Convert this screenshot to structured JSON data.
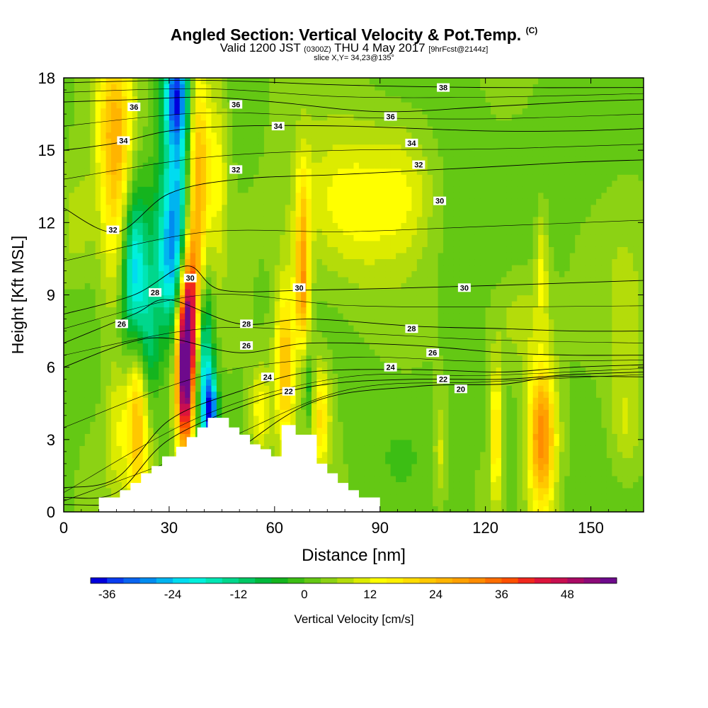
{
  "header": {
    "title": "Angled Section: Vertical Velocity & Pot.Temp.",
    "copyright": "(C)",
    "valid_prefix": "Valid 1200 JST",
    "valid_utc": "(0300Z)",
    "valid_day": "THU 4 May 2017",
    "forecast": "[9hrFcst@2144z]",
    "slice": "slice X,Y= 34,23@135°"
  },
  "chart_data": {
    "type": "heatmap",
    "title": "Angled Section: Vertical Velocity & Pot.Temp.",
    "xlabel": "Distance [nm]",
    "ylabel": "Height [Kft MSL]",
    "xlim": [
      0,
      165
    ],
    "ylim": [
      0,
      18
    ],
    "x_ticks": [
      0,
      30,
      60,
      90,
      120,
      150
    ],
    "y_ticks": [
      0,
      3,
      6,
      9,
      12,
      15,
      18
    ],
    "colorbar": {
      "label": "Vertical Velocity [cm/s]",
      "tick_labels": [
        "-36",
        "-24",
        "-12",
        "0",
        "12",
        "24",
        "36",
        "48"
      ],
      "tick_values": [
        -36,
        -24,
        -12,
        0,
        12,
        24,
        36,
        48
      ],
      "bins": [
        -39,
        -36,
        -33,
        -30,
        -27,
        -24,
        -21,
        -18,
        -15,
        -12,
        -9,
        -6,
        -3,
        0,
        3,
        6,
        9,
        12,
        15,
        18,
        21,
        24,
        27,
        30,
        33,
        36,
        39,
        42,
        45,
        48,
        51,
        54
      ],
      "colors": [
        "#0000dc",
        "#0a3cf0",
        "#0a64f0",
        "#008cf0",
        "#00b4f0",
        "#00dcf0",
        "#00f0dc",
        "#00e6b4",
        "#00d78c",
        "#00c864",
        "#00b93c",
        "#14b41e",
        "#3cbe14",
        "#64c814",
        "#8cd214",
        "#b4dc0a",
        "#dceb00",
        "#ffff00",
        "#fff000",
        "#ffdc00",
        "#ffc800",
        "#ffb400",
        "#ffa000",
        "#ff8c00",
        "#ff6e00",
        "#ff5000",
        "#f0281e",
        "#dc143c",
        "#c80f50",
        "#aa0a64",
        "#8c0a78",
        "#6e0a8c"
      ]
    },
    "velocity_features": [
      {
        "label": "updraft",
        "x": 15,
        "y": 13.5,
        "sx": 3.5,
        "sy": 3.5,
        "w": 18
      },
      {
        "label": "updraft",
        "x": 14,
        "y": 16.5,
        "sx": 4,
        "sy": 2,
        "w": 10
      },
      {
        "label": "downdraft",
        "x": 20,
        "y": 9.8,
        "sx": 2.5,
        "sy": 2.6,
        "w": -28
      },
      {
        "label": "downdraft",
        "x": 24,
        "y": 7.0,
        "sx": 2,
        "sy": 2,
        "w": -14
      },
      {
        "label": "updraft",
        "x": 21,
        "y": 4.2,
        "sx": 2.3,
        "sy": 2.8,
        "w": 24
      },
      {
        "label": "updraft",
        "x": 15,
        "y": 3.5,
        "sx": 2,
        "sy": 2,
        "w": 8
      },
      {
        "label": "downdraft",
        "x": 33,
        "y": 11.5,
        "sx": 5,
        "sy": 2.5,
        "w": -18
      },
      {
        "label": "downdraft",
        "x": 30,
        "y": 10.0,
        "sx": 3,
        "sy": 2,
        "w": -12
      },
      {
        "label": "downdraft",
        "x": 33,
        "y": 15.0,
        "sx": 3,
        "sy": 4,
        "w": -16
      },
      {
        "label": "downdraft",
        "x": 32,
        "y": 17.3,
        "sx": 2.5,
        "sy": 1.5,
        "w": -26
      },
      {
        "label": "updraft",
        "x": 38,
        "y": 13.2,
        "sx": 2.5,
        "sy": 3.8,
        "w": 32
      },
      {
        "label": "updraft",
        "x": 36,
        "y": 8.8,
        "sx": 2,
        "sy": 2.5,
        "w": 26
      },
      {
        "label": "updraft",
        "x": 34.5,
        "y": 6.0,
        "sx": 1.8,
        "sy": 2.6,
        "w": 54
      },
      {
        "label": "downdraft",
        "x": 40,
        "y": 6.0,
        "sx": 1.8,
        "sy": 2.8,
        "w": -26
      },
      {
        "label": "downdraft",
        "x": 42,
        "y": 4.2,
        "sx": 1.3,
        "sy": 1,
        "w": -30
      },
      {
        "label": "updraft",
        "x": 44,
        "y": 14.0,
        "sx": 2,
        "sy": 3,
        "w": 10
      },
      {
        "label": "updraft",
        "x": 63,
        "y": 6.2,
        "sx": 2,
        "sy": 2.5,
        "w": 22
      },
      {
        "label": "updraft",
        "x": 56,
        "y": 4.2,
        "sx": 2,
        "sy": 1.3,
        "w": 12
      },
      {
        "label": "updraft",
        "x": 68,
        "y": 11.0,
        "sx": 1.5,
        "sy": 2.5,
        "w": 18
      },
      {
        "label": "updraft",
        "x": 68,
        "y": 8.8,
        "sx": 1.5,
        "sy": 1.5,
        "w": 14
      },
      {
        "label": "updraft",
        "x": 73,
        "y": 4.0,
        "sx": 2,
        "sy": 1.5,
        "w": 16
      },
      {
        "label": "downdraft",
        "x": 70,
        "y": 5.0,
        "sx": 1,
        "sy": 1.2,
        "w": -10
      },
      {
        "label": "updraft",
        "x": 82,
        "y": 12.8,
        "sx": 11,
        "sy": 2.2,
        "w": 12
      },
      {
        "label": "updraft",
        "x": 98,
        "y": 13.5,
        "sx": 6,
        "sy": 2,
        "w": 6
      },
      {
        "label": "updraft",
        "x": 136,
        "y": 3.1,
        "sx": 2.8,
        "sy": 2.2,
        "w": 30
      },
      {
        "label": "updraft",
        "x": 123,
        "y": 3.2,
        "sx": 1.2,
        "sy": 2,
        "w": 18
      },
      {
        "label": "updraft",
        "x": 107,
        "y": 2.5,
        "sx": 1.2,
        "sy": 1.5,
        "w": 8
      },
      {
        "label": "updraft",
        "x": 136,
        "y": 10.2,
        "sx": 1.2,
        "sy": 1.5,
        "w": 10
      },
      {
        "label": "updraft",
        "x": 130,
        "y": 8.0,
        "sx": 6,
        "sy": 1.5,
        "w": 6
      },
      {
        "label": "downdraft",
        "x": 110,
        "y": 12.5,
        "sx": 8,
        "sy": 3,
        "w": -2
      },
      {
        "label": "downdraft",
        "x": 140,
        "y": 15.5,
        "sx": 10,
        "sy": 2,
        "w": -1
      },
      {
        "label": "downdraft",
        "x": 95,
        "y": 2.5,
        "sx": 6,
        "sy": 1.2,
        "w": -2
      },
      {
        "label": "downdraft",
        "x": 128,
        "y": 2.0,
        "sx": 4,
        "sy": 1.5,
        "w": -3
      },
      {
        "label": "updraft",
        "x": 160,
        "y": 8.0,
        "sx": 4,
        "sy": 3,
        "w": 4
      },
      {
        "label": "updraft",
        "x": 160,
        "y": 3.5,
        "sx": 3,
        "sy": 1.5,
        "w": 6
      },
      {
        "label": "updraft",
        "x": 4,
        "y": 12.0,
        "sx": 3,
        "sy": 1.5,
        "w": 6
      }
    ],
    "terrain": {
      "x": [
        0,
        10,
        10,
        16,
        16,
        19,
        19,
        22,
        22,
        25,
        25,
        28,
        28,
        32,
        32,
        35,
        35,
        38,
        38,
        41,
        41,
        47,
        47,
        50,
        50,
        53,
        53,
        56,
        56,
        59,
        59,
        62,
        62,
        66,
        66,
        72,
        72,
        75,
        75,
        78,
        78,
        81,
        81,
        84,
        84,
        90,
        90,
        165
      ],
      "y": [
        0,
        0,
        0.6,
        0.6,
        0.9,
        0.9,
        1.2,
        1.2,
        1.6,
        1.6,
        1.9,
        1.9,
        2.3,
        2.3,
        2.7,
        2.7,
        3.1,
        3.1,
        3.5,
        3.5,
        3.9,
        3.9,
        3.5,
        3.5,
        3.2,
        3.2,
        2.8,
        2.8,
        2.6,
        2.6,
        2.3,
        2.3,
        3.6,
        3.6,
        3.2,
        3.2,
        2.0,
        2.0,
        1.6,
        1.6,
        1.2,
        1.2,
        0.9,
        0.9,
        0.6,
        0.6,
        0,
        0
      ]
    },
    "theta_contours": [
      {
        "value": 20,
        "x": [
          0,
          20,
          40,
          70,
          100,
          125,
          140,
          165
        ],
        "y": [
          0.3,
          0.4,
          1.6,
          4.5,
          5.2,
          5.3,
          5.6,
          5.6
        ]
      },
      {
        "value": 22,
        "x": [
          0,
          15,
          30,
          55,
          75,
          100,
          125,
          145,
          165
        ],
        "y": [
          0.6,
          0.8,
          3.0,
          4.6,
          5.3,
          5.5,
          5.5,
          5.7,
          5.8
        ]
      },
      {
        "value": 24,
        "x": [
          0,
          15,
          30,
          50,
          70,
          100,
          125,
          145,
          165
        ],
        "y": [
          1.0,
          1.4,
          3.8,
          5.0,
          5.8,
          5.9,
          5.8,
          6.0,
          6.1
        ]
      },
      {
        "value": 26,
        "x": [
          0,
          18,
          30,
          50,
          70,
          100,
          125,
          145,
          165
        ],
        "y": [
          6.0,
          7.0,
          7.2,
          6.6,
          7.0,
          6.9,
          6.6,
          6.5,
          6.5
        ]
      },
      {
        "value": 28,
        "x": [
          0,
          20,
          30,
          50,
          70,
          100,
          125,
          145,
          165
        ],
        "y": [
          7.0,
          8.2,
          8.8,
          7.8,
          8.0,
          7.7,
          7.6,
          7.5,
          7.5
        ]
      },
      {
        "value": 30,
        "x": [
          0,
          20,
          35,
          45,
          70,
          100,
          125,
          145,
          165
        ],
        "y": [
          8.2,
          9.0,
          10.2,
          9.2,
          9.2,
          9.3,
          9.4,
          9.5,
          9.6
        ]
      },
      {
        "value": 32,
        "x": [
          0,
          15,
          30,
          50,
          80,
          120,
          145,
          165
        ],
        "y": [
          12.6,
          11.6,
          13.2,
          13.8,
          14.0,
          14.3,
          14.5,
          14.6
        ]
      },
      {
        "value": 34,
        "x": [
          0,
          15,
          30,
          50,
          80,
          120,
          145,
          165
        ],
        "y": [
          15.0,
          15.3,
          15.8,
          16.0,
          16.0,
          15.8,
          15.8,
          15.9
        ]
      },
      {
        "value": 36,
        "x": [
          0,
          20,
          40,
          60,
          90,
          120,
          145,
          165
        ],
        "y": [
          17.0,
          17.1,
          17.2,
          17.0,
          16.6,
          16.8,
          17.0,
          17.1
        ]
      },
      {
        "value": 38,
        "x": [
          0,
          40,
          80,
          120,
          165
        ],
        "y": [
          17.8,
          17.9,
          17.7,
          17.6,
          17.6
        ]
      }
    ],
    "contour_labels": [
      {
        "text": "36",
        "x": 20,
        "y": 16.8
      },
      {
        "text": "34",
        "x": 17,
        "y": 15.4
      },
      {
        "text": "32",
        "x": 14,
        "y": 11.7
      },
      {
        "text": "28",
        "x": 26,
        "y": 9.1
      },
      {
        "text": "26",
        "x": 16.5,
        "y": 7.8
      },
      {
        "text": "30",
        "x": 36,
        "y": 9.7
      },
      {
        "text": "36",
        "x": 49,
        "y": 16.9
      },
      {
        "text": "34",
        "x": 61,
        "y": 16.0
      },
      {
        "text": "32",
        "x": 49,
        "y": 14.2
      },
      {
        "text": "30",
        "x": 67,
        "y": 9.3
      },
      {
        "text": "28",
        "x": 52,
        "y": 7.8
      },
      {
        "text": "26",
        "x": 52,
        "y": 6.9
      },
      {
        "text": "24",
        "x": 58,
        "y": 5.6
      },
      {
        "text": "22",
        "x": 64,
        "y": 5.0
      },
      {
        "text": "38",
        "x": 108,
        "y": 17.6
      },
      {
        "text": "36",
        "x": 93,
        "y": 16.4
      },
      {
        "text": "34",
        "x": 99,
        "y": 15.3
      },
      {
        "text": "32",
        "x": 101,
        "y": 14.4
      },
      {
        "text": "30",
        "x": 107,
        "y": 12.9
      },
      {
        "text": "30",
        "x": 114,
        "y": 9.3
      },
      {
        "text": "28",
        "x": 99,
        "y": 7.6
      },
      {
        "text": "26",
        "x": 105,
        "y": 6.6
      },
      {
        "text": "24",
        "x": 93,
        "y": 6.0
      },
      {
        "text": "22",
        "x": 108,
        "y": 5.5
      },
      {
        "text": "20",
        "x": 113,
        "y": 5.1
      }
    ]
  }
}
